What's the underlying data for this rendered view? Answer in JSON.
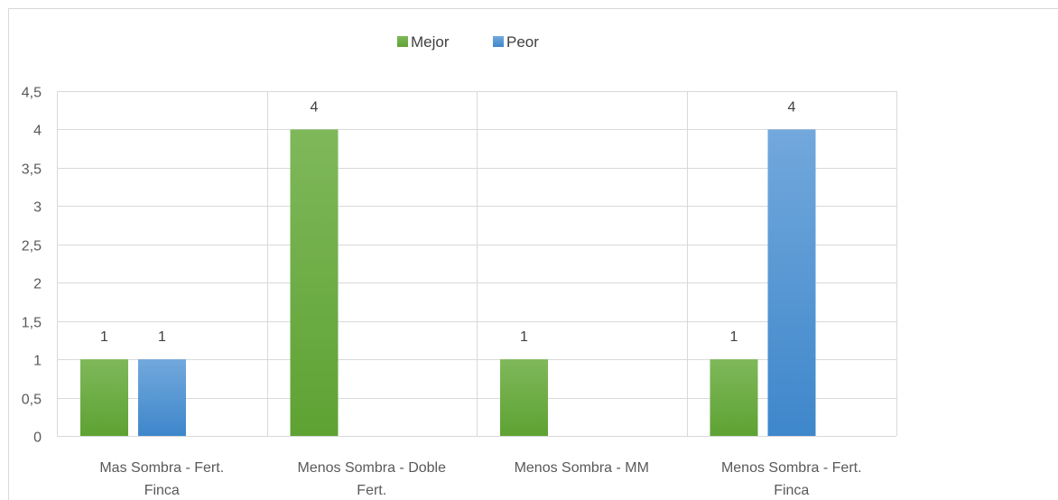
{
  "chart_data": {
    "type": "bar",
    "categories": [
      [
        "Mas Sombra - Fert.",
        "Finca"
      ],
      [
        "Menos Sombra - Doble",
        "Fert."
      ],
      [
        "Menos Sombra - MM"
      ],
      [
        "Menos Sombra - Fert.",
        "Finca"
      ]
    ],
    "series": [
      {
        "name": "Mejor",
        "values": [
          1,
          4,
          1,
          1
        ],
        "labels": [
          "1",
          "4",
          "1",
          "1"
        ],
        "color": "#70ad47"
      },
      {
        "name": "Peor",
        "values": [
          1,
          null,
          null,
          4
        ],
        "labels": [
          "1",
          "",
          "",
          "4"
        ],
        "color": "#5b9bd5"
      }
    ],
    "yticks": [
      "0",
      "0,5",
      "1",
      "1,5",
      "2",
      "2,5",
      "3",
      "3,5",
      "4",
      "4,5"
    ],
    "ylim": [
      0,
      4.5
    ],
    "grid": true,
    "legend_position": "top-center"
  }
}
